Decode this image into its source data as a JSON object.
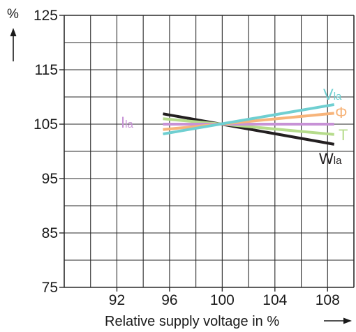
{
  "chart_data": {
    "type": "line",
    "ylabel": "%",
    "xlabel": "Relative supply voltage in %",
    "xlim": [
      88,
      110
    ],
    "ylim": [
      75,
      125
    ],
    "x_ticks": [
      92,
      96,
      100,
      104,
      108
    ],
    "y_ticks": [
      75,
      85,
      95,
      105,
      115,
      125
    ],
    "x_grid_step": 2,
    "y_grid_step": 5,
    "grid": true,
    "series": [
      {
        "name": "W",
        "subscript": "la",
        "color": "#231f20",
        "x": [
          95.5,
          108.5
        ],
        "y": [
          106.9,
          101.3
        ]
      },
      {
        "name": "T",
        "subscript": "",
        "color": "#b6dc8c",
        "x": [
          95.5,
          108.5
        ],
        "y": [
          106.0,
          103.1
        ]
      },
      {
        "name": "I",
        "subscript": "la",
        "color": "#c792d6",
        "x": [
          95.5,
          108.5
        ],
        "y": [
          105.0,
          105.0
        ]
      },
      {
        "name": "Φ",
        "subscript": "",
        "color": "#f7b47a",
        "x": [
          95.5,
          108.5
        ],
        "y": [
          104.0,
          107.0
        ]
      },
      {
        "name": "V",
        "subscript": "la",
        "color": "#6fcfd1",
        "x": [
          95.5,
          108.5
        ],
        "y": [
          103.2,
          108.6
        ]
      }
    ]
  }
}
